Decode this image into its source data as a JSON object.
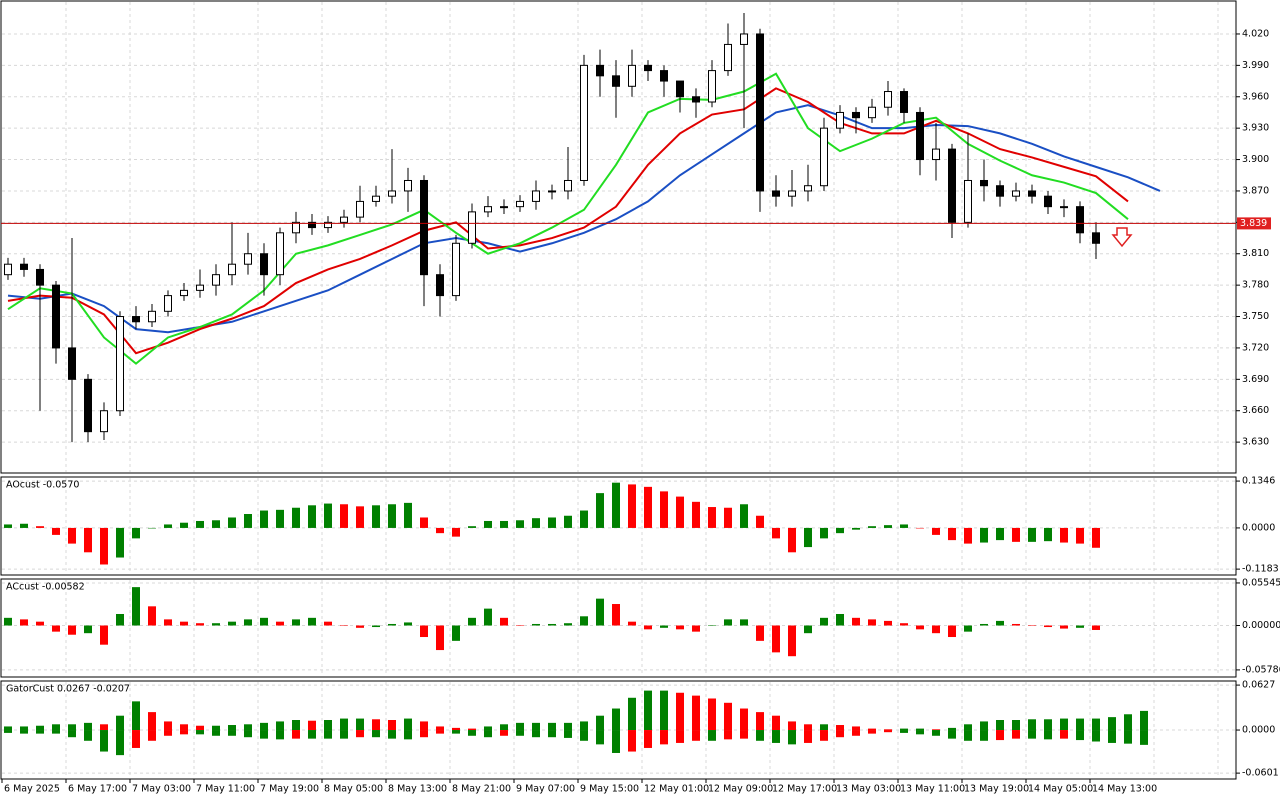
{
  "chart_data": [
    {
      "type": "candlestick",
      "grid": true,
      "ylim": [
        3.6005,
        4.0515
      ],
      "yticks": [
        {
          "value": 4.02,
          "label": "4.020"
        },
        {
          "value": 3.99,
          "label": "3.990"
        },
        {
          "value": 3.96,
          "label": "3.960"
        },
        {
          "value": 3.93,
          "label": "3.930"
        },
        {
          "value": 3.9,
          "label": "3.900"
        },
        {
          "value": 3.87,
          "label": "3.870"
        },
        {
          "value": 3.84,
          "label": "3.840"
        },
        {
          "value": 3.81,
          "label": "3.810"
        },
        {
          "value": 3.78,
          "label": "3.780"
        },
        {
          "value": 3.75,
          "label": "3.750"
        },
        {
          "value": 3.72,
          "label": "3.720"
        },
        {
          "value": 3.69,
          "label": "3.690"
        },
        {
          "value": 3.66,
          "label": "3.660"
        },
        {
          "value": 3.63,
          "label": "3.630"
        }
      ],
      "current_price": {
        "value": 3.839,
        "label": "3.839"
      },
      "up_color": "#ffffff",
      "down_color": "#000000",
      "open": [
        3.79,
        3.8,
        3.795,
        3.78,
        3.72,
        3.69,
        3.64,
        3.66,
        3.75,
        3.745,
        3.755,
        3.77,
        3.775,
        3.78,
        3.79,
        3.8,
        3.81,
        3.79,
        3.83,
        3.84,
        3.835,
        3.84,
        3.845,
        3.86,
        3.865,
        3.87,
        3.88,
        3.79,
        3.77,
        3.82,
        3.85,
        3.855,
        3.855,
        3.86,
        3.87,
        3.87,
        3.88,
        3.99,
        3.98,
        3.97,
        3.99,
        3.985,
        3.975,
        3.96,
        3.955,
        3.985,
        4.01,
        4.02,
        3.87,
        3.865,
        3.87,
        3.875,
        3.93,
        3.945,
        3.94,
        3.95,
        3.965,
        3.945,
        3.9,
        3.91,
        3.84,
        3.88,
        3.875,
        3.865,
        3.87,
        3.865,
        3.855,
        3.855,
        3.83
      ],
      "high": [
        3.806,
        3.806,
        3.8,
        3.784,
        3.825,
        3.695,
        3.668,
        3.755,
        3.76,
        3.762,
        3.775,
        3.782,
        3.795,
        3.8,
        3.84,
        3.83,
        3.82,
        3.835,
        3.85,
        3.848,
        3.846,
        3.852,
        3.875,
        3.875,
        3.91,
        3.892,
        3.885,
        3.8,
        3.828,
        3.858,
        3.865,
        3.862,
        3.866,
        3.88,
        3.876,
        3.912,
        4.0,
        4.005,
        3.995,
        4.005,
        3.995,
        3.99,
        3.975,
        3.968,
        3.995,
        4.03,
        4.04,
        4.025,
        3.885,
        3.89,
        3.895,
        3.94,
        3.952,
        3.95,
        3.958,
        3.975,
        3.968,
        3.95,
        3.935,
        3.915,
        3.925,
        3.9,
        3.88,
        3.878,
        3.876,
        3.87,
        3.862,
        3.86,
        3.84
      ],
      "low": [
        3.785,
        3.788,
        3.66,
        3.705,
        3.63,
        3.63,
        3.632,
        3.655,
        3.738,
        3.74,
        3.75,
        3.765,
        3.768,
        3.77,
        3.78,
        3.79,
        3.77,
        3.78,
        3.82,
        3.828,
        3.83,
        3.835,
        3.84,
        3.855,
        3.858,
        3.85,
        3.76,
        3.75,
        3.765,
        3.815,
        3.845,
        3.848,
        3.85,
        3.852,
        3.862,
        3.862,
        3.875,
        3.96,
        3.94,
        3.96,
        3.975,
        3.96,
        3.945,
        3.94,
        3.95,
        3.98,
        3.93,
        3.85,
        3.855,
        3.855,
        3.86,
        3.87,
        3.925,
        3.925,
        3.935,
        3.942,
        3.935,
        3.885,
        3.88,
        3.825,
        3.835,
        3.86,
        3.855,
        3.86,
        3.858,
        3.848,
        3.845,
        3.82,
        3.805
      ],
      "close": [
        3.8,
        3.795,
        3.78,
        3.72,
        3.69,
        3.64,
        3.66,
        3.75,
        3.745,
        3.755,
        3.77,
        3.775,
        3.78,
        3.79,
        3.8,
        3.81,
        3.79,
        3.83,
        3.84,
        3.835,
        3.84,
        3.845,
        3.86,
        3.865,
        3.87,
        3.88,
        3.79,
        3.77,
        3.82,
        3.85,
        3.855,
        3.855,
        3.86,
        3.87,
        3.87,
        3.88,
        3.99,
        3.98,
        3.97,
        3.99,
        3.985,
        3.975,
        3.96,
        3.955,
        3.985,
        4.01,
        4.02,
        3.87,
        3.865,
        3.87,
        3.875,
        3.93,
        3.945,
        3.94,
        3.95,
        3.965,
        3.945,
        3.9,
        3.91,
        3.84,
        3.88,
        3.875,
        3.865,
        3.87,
        3.865,
        3.855,
        3.855,
        3.83,
        3.82
      ],
      "lines": [
        {
          "color": "#1a4fc4",
          "values": [
            3.77,
            3.767,
            3.772,
            3.76,
            3.738,
            3.735,
            3.74,
            3.745,
            3.755,
            3.765,
            3.775,
            3.79,
            3.805,
            3.82,
            3.825,
            3.82,
            3.812,
            3.82,
            3.83,
            3.843,
            3.86,
            3.885,
            3.905,
            3.925,
            3.945,
            3.952,
            3.942,
            3.93,
            3.93,
            3.933,
            3.932,
            3.925,
            3.915,
            3.903,
            3.893,
            3.883,
            3.87
          ]
        },
        {
          "color": "#e00000",
          "values": [
            3.765,
            3.77,
            3.768,
            3.752,
            3.715,
            3.725,
            3.738,
            3.748,
            3.76,
            3.782,
            3.795,
            3.805,
            3.818,
            3.832,
            3.84,
            3.815,
            3.818,
            3.825,
            3.835,
            3.855,
            3.895,
            3.925,
            3.943,
            3.948,
            3.968,
            3.955,
            3.935,
            3.925,
            3.925,
            3.937,
            3.925,
            3.91,
            3.902,
            3.893,
            3.884,
            3.86
          ]
        },
        {
          "color": "#22dd22",
          "values": [
            3.757,
            3.777,
            3.772,
            3.73,
            3.705,
            3.73,
            3.74,
            3.752,
            3.775,
            3.81,
            3.818,
            3.828,
            3.838,
            3.852,
            3.83,
            3.81,
            3.82,
            3.835,
            3.852,
            3.895,
            3.945,
            3.958,
            3.957,
            3.965,
            3.982,
            3.93,
            3.908,
            3.92,
            3.935,
            3.94,
            3.915,
            3.899,
            3.885,
            3.878,
            3.868,
            3.843
          ]
        }
      ],
      "time_labels": [
        "6 May 2025",
        "6 May 17:00",
        "7 May 03:00",
        "7 May 11:00",
        "7 May 19:00",
        "8 May 05:00",
        "8 May 13:00",
        "8 May 21:00",
        "9 May 07:00",
        "9 May 15:00",
        "12 May 01:00",
        "12 May 09:00",
        "12 May 17:00",
        "13 May 03:00",
        "13 May 11:00",
        "13 May 19:00",
        "14 May 05:00",
        "14 May 13:00"
      ]
    },
    {
      "type": "oscillator",
      "title": "AOcust -0.0570",
      "grid": true,
      "ylim": [
        -0.1352,
        0.1463
      ],
      "yticks": [
        0.1346,
        {
          "value": 0,
          "label": "0.0000"
        },
        -0.1183
      ],
      "up_color": "#008000",
      "down_color": "#ff0000",
      "values": [
        0.01,
        0.012,
        0.005,
        -0.02,
        -0.045,
        -0.07,
        -0.105,
        -0.085,
        -0.03,
        0,
        0.01,
        0.015,
        0.02,
        0.022,
        0.03,
        0.04,
        0.05,
        0.052,
        0.058,
        0.065,
        0.07,
        0.068,
        0.062,
        0.065,
        0.068,
        0.072,
        0.03,
        -0.015,
        -0.025,
        0.005,
        0.02,
        0.02,
        0.022,
        0.028,
        0.03,
        0.035,
        0.05,
        0.1,
        0.13,
        0.125,
        0.118,
        0.105,
        0.09,
        0.075,
        0.06,
        0.058,
        0.068,
        0.035,
        -0.03,
        -0.07,
        -0.055,
        -0.03,
        -0.015,
        -0.005,
        0.005,
        0.008,
        0.01,
        0,
        -0.02,
        -0.035,
        -0.045,
        -0.042,
        -0.035,
        -0.04,
        -0.04,
        -0.038,
        -0.042,
        -0.045,
        -0.057
      ]
    },
    {
      "type": "oscillator",
      "title": "ACcust -0.00582",
      "grid": true,
      "ylim": [
        -0.0671,
        0.0606
      ],
      "yticks": [
        0.05545,
        {
          "value": 0,
          "label": "0.00000"
        },
        -0.05786
      ],
      "up_color": "#008000",
      "down_color": "#ff0000",
      "values": [
        0.01,
        0.008,
        0.005,
        -0.008,
        -0.012,
        -0.01,
        -0.025,
        0.015,
        0.05,
        0.025,
        0.008,
        0.005,
        0.003,
        0.003,
        0.005,
        0.008,
        0.01,
        0.005,
        0.008,
        0.01,
        0.005,
        0,
        -0.003,
        -0.002,
        0.002,
        0.004,
        -0.015,
        -0.032,
        -0.02,
        0.01,
        0.022,
        0.01,
        0,
        0.002,
        0.002,
        0.003,
        0.012,
        0.035,
        0.028,
        0.005,
        -0.005,
        -0.003,
        -0.005,
        -0.008,
        0,
        0.008,
        0.008,
        -0.02,
        -0.035,
        -0.04,
        -0.01,
        0.01,
        0.015,
        0.01,
        0.008,
        0.006,
        0.003,
        -0.005,
        -0.01,
        -0.015,
        -0.008,
        0.002,
        0.006,
        0.002,
        0,
        -0.002,
        -0.004,
        -0.003,
        -0.00582
      ]
    },
    {
      "type": "gator",
      "title": "GatorCust 0.0267 -0.0207",
      "grid": true,
      "ylim": [
        -0.0683,
        0.0684
      ],
      "yticks": [
        0.0627,
        {
          "value": 0,
          "label": "0.0000"
        },
        -0.0601
      ],
      "up_color": "#008000",
      "down_color": "#ff0000",
      "upper": [
        0.005,
        0.005,
        0.006,
        0.008,
        0.008,
        0.01,
        0.008,
        0.02,
        0.04,
        0.025,
        0.012,
        0.008,
        0.006,
        0.006,
        0.007,
        0.008,
        0.01,
        0.012,
        0.014,
        0.013,
        0.014,
        0.016,
        0.016,
        0.015,
        0.014,
        0.016,
        0.012,
        0.005,
        0.003,
        0.002,
        0.005,
        0.008,
        0.01,
        0.01,
        0.01,
        0.01,
        0.012,
        0.02,
        0.03,
        0.045,
        0.055,
        0.055,
        0.052,
        0.048,
        0.044,
        0.038,
        0.03,
        0.025,
        0.02,
        0.012,
        0.008,
        0.008,
        0.007,
        0.005,
        0.002,
        0.001,
        0.002,
        0.002,
        0.001,
        0.003,
        0.008,
        0.012,
        0.014,
        0.014,
        0.015,
        0.015,
        0.016,
        0.016,
        0.016,
        0.018,
        0.022,
        0.0267
      ],
      "lower": [
        -0.004,
        -0.005,
        -0.005,
        -0.005,
        -0.01,
        -0.015,
        -0.03,
        -0.035,
        -0.025,
        -0.015,
        -0.008,
        -0.006,
        -0.006,
        -0.008,
        -0.008,
        -0.01,
        -0.012,
        -0.013,
        -0.012,
        -0.012,
        -0.012,
        -0.012,
        -0.01,
        -0.01,
        -0.012,
        -0.013,
        -0.01,
        -0.005,
        -0.005,
        -0.008,
        -0.01,
        -0.008,
        -0.008,
        -0.01,
        -0.01,
        -0.011,
        -0.015,
        -0.02,
        -0.032,
        -0.03,
        -0.025,
        -0.02,
        -0.018,
        -0.015,
        -0.015,
        -0.013,
        -0.012,
        -0.015,
        -0.018,
        -0.02,
        -0.018,
        -0.015,
        -0.01,
        -0.008,
        -0.005,
        -0.003,
        -0.004,
        -0.006,
        -0.008,
        -0.012,
        -0.015,
        -0.015,
        -0.014,
        -0.012,
        -0.012,
        -0.013,
        -0.012,
        -0.014,
        -0.016,
        -0.018,
        -0.019,
        -0.0207
      ]
    }
  ]
}
